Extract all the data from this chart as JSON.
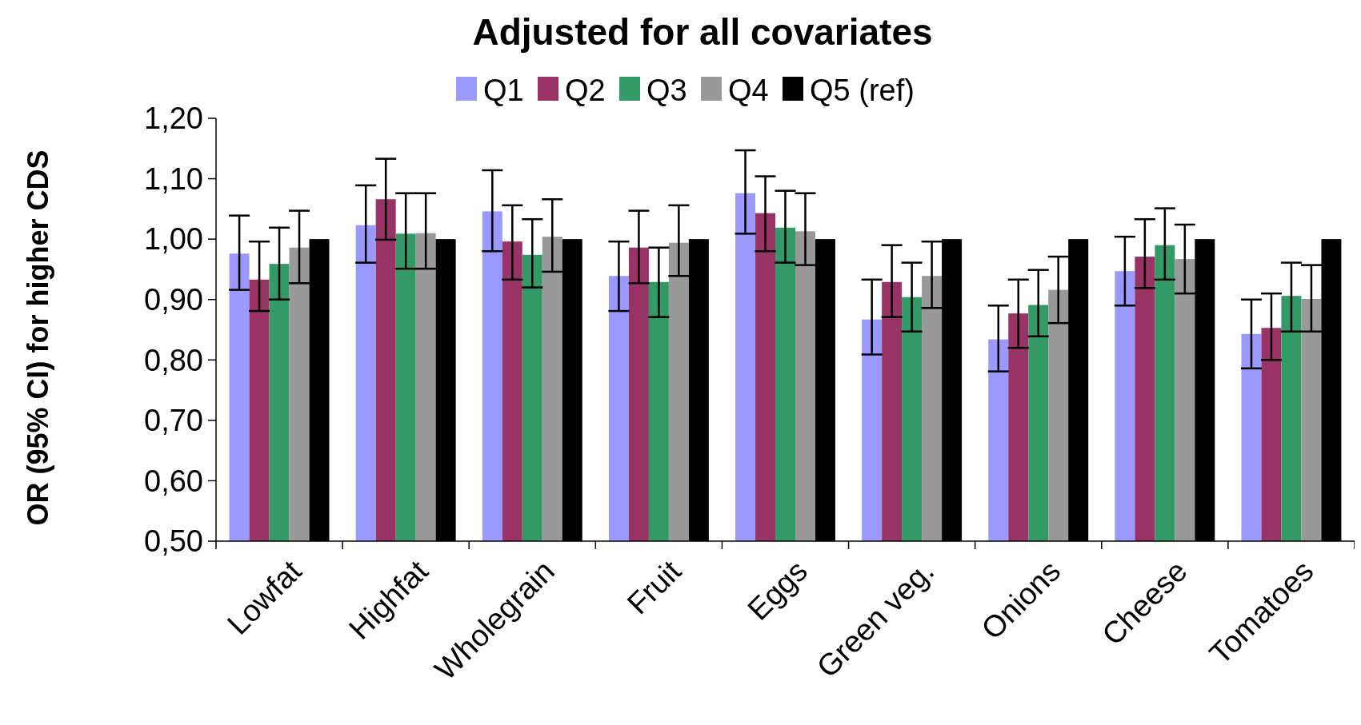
{
  "chart_data": {
    "type": "bar",
    "title": "Adjusted for all covariates",
    "ylabel": "OR (95% CI) for higher CDS",
    "categories": [
      "Lowfat",
      "Highfat",
      "Wholegrain",
      "Fruit",
      "Eggs",
      "Green veg.",
      "Onions",
      "Cheese",
      "Tomatoes"
    ],
    "series": [
      {
        "name": "Q1",
        "color": "#9999ff",
        "values": [
          0.976,
          1.023,
          1.046,
          0.939,
          1.076,
          0.867,
          0.834,
          0.947,
          0.843
        ],
        "errors": [
          [
            0.916,
            1.039
          ],
          [
            0.961,
            1.089
          ],
          [
            0.98,
            1.114
          ],
          [
            0.881,
            0.996
          ],
          [
            1.009,
            1.147
          ],
          [
            0.809,
            0.933
          ],
          [
            0.781,
            0.89
          ],
          [
            0.89,
            1.004
          ],
          [
            0.786,
            0.9
          ]
        ]
      },
      {
        "name": "Q2",
        "color": "#993366",
        "values": [
          0.933,
          1.066,
          0.996,
          0.986,
          1.043,
          0.929,
          0.877,
          0.971,
          0.853
        ],
        "errors": [
          [
            0.881,
            0.996
          ],
          [
            0.999,
            1.133
          ],
          [
            0.933,
            1.056
          ],
          [
            0.927,
            1.047
          ],
          [
            0.98,
            1.104
          ],
          [
            0.871,
            0.99
          ],
          [
            0.82,
            0.933
          ],
          [
            0.919,
            1.033
          ],
          [
            0.8,
            0.91
          ]
        ]
      },
      {
        "name": "Q3",
        "color": "#339966",
        "values": [
          0.959,
          1.009,
          0.974,
          0.929,
          1.019,
          0.904,
          0.891,
          0.99,
          0.906
        ],
        "errors": [
          [
            0.9,
            1.019
          ],
          [
            0.951,
            1.076
          ],
          [
            0.92,
            1.033
          ],
          [
            0.871,
            0.986
          ],
          [
            0.961,
            1.08
          ],
          [
            0.847,
            0.961
          ],
          [
            0.839,
            0.949
          ],
          [
            0.933,
            1.051
          ],
          [
            0.847,
            0.961
          ]
        ]
      },
      {
        "name": "Q4",
        "color": "#999999",
        "values": [
          0.986,
          1.01,
          1.004,
          0.994,
          1.013,
          0.939,
          0.916,
          0.967,
          0.901
        ],
        "errors": [
          [
            0.927,
            1.047
          ],
          [
            0.951,
            1.076
          ],
          [
            0.946,
            1.066
          ],
          [
            0.939,
            1.056
          ],
          [
            0.957,
            1.076
          ],
          [
            0.886,
            0.996
          ],
          [
            0.861,
            0.971
          ],
          [
            0.91,
            1.024
          ],
          [
            0.847,
            0.957
          ]
        ]
      },
      {
        "name": "Q5 (ref)",
        "color": "#000000",
        "values": [
          1,
          1,
          1,
          1,
          1,
          1,
          1,
          1,
          1
        ]
      }
    ],
    "ylim": [
      0.5,
      1.2
    ],
    "yticks": [
      {
        "value": 0.5,
        "label": "0,50"
      },
      {
        "value": 0.6,
        "label": "0,60"
      },
      {
        "value": 0.7,
        "label": "0,70"
      },
      {
        "value": 0.8,
        "label": "0,80"
      },
      {
        "value": 0.9,
        "label": "0,90"
      },
      {
        "value": 1.0,
        "label": "1,00"
      },
      {
        "value": 1.1,
        "label": "1,10"
      },
      {
        "value": 1.2,
        "label": "1,20"
      }
    ],
    "grid": false,
    "legend": "top"
  }
}
